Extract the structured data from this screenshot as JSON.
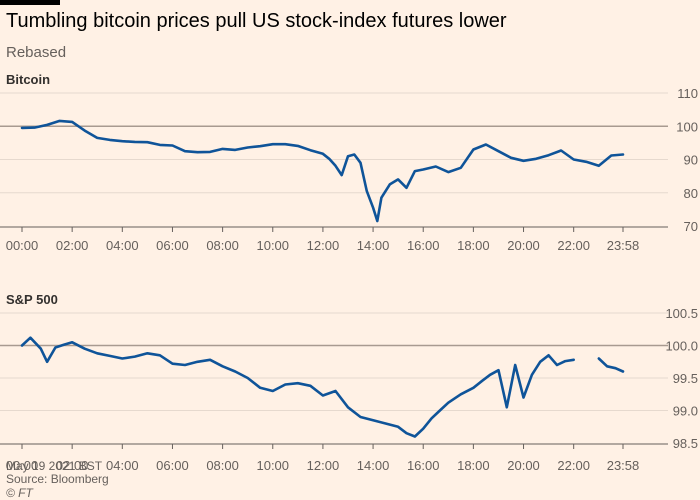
{
  "header": {
    "title": "Tumbling bitcoin prices pull US stock-index futures lower",
    "subtitle": "Rebased"
  },
  "footer": {
    "date": "May 19 2021 BST",
    "source": "Source: Bloomberg",
    "copyright": "© FT"
  },
  "colors": {
    "series": "#0f5499",
    "background": "#fff1e5"
  },
  "chart_data": [
    {
      "type": "line",
      "title": "Bitcoin",
      "ylim": [
        70,
        110
      ],
      "yticks": [
        70,
        80,
        90,
        100,
        110
      ],
      "reference_line": 100,
      "xlim": [
        "00:00",
        "23:58"
      ],
      "xtick_labels": [
        "00:00",
        "02:00",
        "04:00",
        "06:00",
        "08:00",
        "10:00",
        "12:00",
        "14:00",
        "16:00",
        "18:00",
        "20:00",
        "22:00",
        "23:58"
      ],
      "grid": true,
      "series": [
        {
          "x": [
            "00:00",
            "00:30",
            "01:00",
            "01:30",
            "02:00",
            "02:30",
            "03:00",
            "03:30",
            "04:00",
            "04:30",
            "05:00",
            "05:30",
            "06:00",
            "06:30",
            "07:00",
            "07:30",
            "08:00",
            "08:30",
            "09:00",
            "09:30",
            "10:00",
            "10:30",
            "11:00",
            "11:30",
            "12:00",
            "12:15",
            "12:30",
            "12:45",
            "13:00",
            "13:15",
            "13:30",
            "13:45",
            "14:00",
            "14:10",
            "14:20",
            "14:40",
            "15:00",
            "15:20",
            "15:40",
            "16:00",
            "16:30",
            "17:00",
            "17:30",
            "18:00",
            "18:30",
            "19:00",
            "19:30",
            "20:00",
            "20:30",
            "21:00",
            "21:30",
            "22:00",
            "22:30",
            "23:00",
            "23:30",
            "23:58"
          ],
          "values": [
            99.5,
            99.6,
            100.4,
            101.6,
            101.3,
            98.7,
            96.5,
            95.9,
            95.5,
            95.3,
            95.2,
            94.4,
            94.2,
            92.5,
            92.2,
            92.3,
            93.2,
            92.9,
            93.6,
            94.0,
            94.6,
            94.6,
            94.1,
            92.8,
            91.7,
            90.2,
            88.1,
            85.3,
            91.0,
            91.5,
            89.0,
            80.5,
            75.5,
            71.5,
            78.5,
            82.5,
            84.0,
            81.5,
            86.5,
            87.0,
            87.9,
            86.2,
            87.5,
            93.0,
            94.5,
            92.5,
            90.5,
            89.6,
            90.2,
            91.3,
            92.7,
            90.0,
            89.3,
            88.1,
            91.2,
            91.5
          ]
        }
      ]
    },
    {
      "type": "line",
      "title": "S&P 500",
      "ylim": [
        98.5,
        100.5
      ],
      "yticks": [
        98.5,
        99.0,
        99.5,
        100.0,
        100.5
      ],
      "reference_line": 100.0,
      "xlim": [
        "00:00",
        "23:58"
      ],
      "xtick_labels": [
        "00:00",
        "02:00",
        "04:00",
        "06:00",
        "08:00",
        "10:00",
        "12:00",
        "14:00",
        "16:00",
        "18:00",
        "20:00",
        "22:00",
        "23:58"
      ],
      "grid": true,
      "series": [
        {
          "x": [
            "00:00",
            "00:20",
            "00:45",
            "01:00",
            "01:20",
            "01:40",
            "02:00",
            "02:30",
            "03:00",
            "03:30",
            "04:00",
            "04:30",
            "05:00",
            "05:30",
            "06:00",
            "06:30",
            "07:00",
            "07:30",
            "08:00",
            "08:30",
            "09:00",
            "09:30",
            "10:00",
            "10:30",
            "11:00",
            "11:30",
            "12:00",
            "12:30",
            "13:00",
            "13:30",
            "14:00",
            "14:30",
            "15:00",
            "15:20",
            "15:40",
            "16:00",
            "16:20",
            "16:40",
            "17:00",
            "17:30",
            "18:00",
            "18:20",
            "18:40",
            "19:00",
            "19:20",
            "19:40",
            "20:00",
            "20:20",
            "20:40",
            "21:00",
            "21:20",
            "21:40",
            "22:00",
            "23:00",
            "23:20",
            "23:40",
            "23:58"
          ],
          "values": [
            100.0,
            100.12,
            99.95,
            99.75,
            99.97,
            100.01,
            100.05,
            99.95,
            99.88,
            99.84,
            99.8,
            99.83,
            99.88,
            99.85,
            99.72,
            99.7,
            99.75,
            99.78,
            99.68,
            99.6,
            99.5,
            99.35,
            99.3,
            99.4,
            99.42,
            99.38,
            99.23,
            99.3,
            99.05,
            98.9,
            98.85,
            98.8,
            98.75,
            98.65,
            98.6,
            98.72,
            98.88,
            99.0,
            99.12,
            99.25,
            99.35,
            99.45,
            99.55,
            99.62,
            99.05,
            99.7,
            99.2,
            99.55,
            99.75,
            99.85,
            99.7,
            99.76,
            99.78,
            99.8,
            99.68,
            99.65,
            99.6
          ]
        }
      ]
    }
  ]
}
